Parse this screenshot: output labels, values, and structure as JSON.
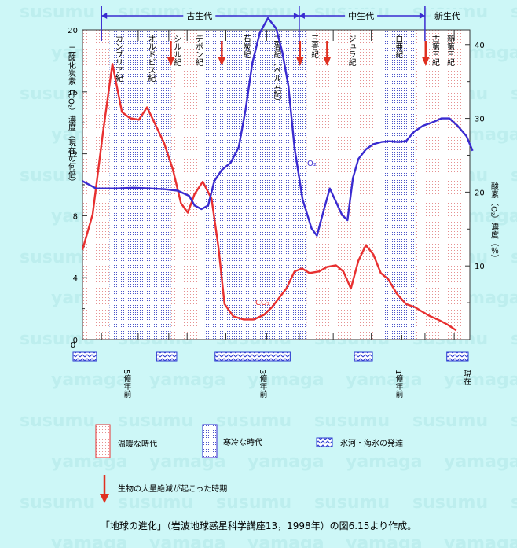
{
  "chart_data": {
    "type": "line",
    "eras": [
      {
        "label": "古生代"
      },
      {
        "label": "中生代"
      },
      {
        "label": "新生代"
      }
    ],
    "periods": [
      {
        "label": "カンブリア紀"
      },
      {
        "label": "オルドビス紀"
      },
      {
        "label": "シルル紀"
      },
      {
        "label": "デボン紀"
      },
      {
        "label": "石炭紀"
      },
      {
        "label": "二畳紀（ペルム紀）"
      },
      {
        "label": "三畳紀"
      },
      {
        "label": "ジュラ紀"
      },
      {
        "label": "白亜紀"
      },
      {
        "label": "古第三紀"
      },
      {
        "label": "新第三紀"
      }
    ],
    "x_axis": {
      "range_million_years_ago": [
        570,
        0
      ],
      "ticks": [
        {
          "value": 500,
          "label": "5億年前"
        },
        {
          "value": 300,
          "label": "3億年前"
        },
        {
          "value": 100,
          "label": "1億年前"
        },
        {
          "value": 0,
          "label": "現在"
        }
      ]
    },
    "y_left": {
      "label": "二酸化炭素（CO₂）濃度（現在の何倍）",
      "range": [
        0,
        20
      ],
      "ticks": [
        "0",
        "4",
        "8",
        "12",
        "16",
        "20"
      ]
    },
    "y_right": {
      "label": "酸素（O₂）濃度（％）",
      "range": [
        0,
        42
      ],
      "ticks": [
        "10",
        "20",
        "30",
        "40"
      ]
    },
    "series": [
      {
        "name": "CO₂",
        "axis": "left",
        "color": "#e83030",
        "points": [
          [
            570,
            5.8
          ],
          [
            555,
            8.1
          ],
          [
            540,
            13.3
          ],
          [
            526,
            17.8
          ],
          [
            512,
            14.7
          ],
          [
            500,
            14.3
          ],
          [
            487,
            14.2
          ],
          [
            475,
            15.0
          ],
          [
            464,
            14.0
          ],
          [
            450,
            12.7
          ],
          [
            437,
            11.0
          ],
          [
            425,
            8.8
          ],
          [
            415,
            8.2
          ],
          [
            405,
            9.4
          ],
          [
            393,
            10.2
          ],
          [
            380,
            9.1
          ],
          [
            370,
            6.0
          ],
          [
            361,
            2.3
          ],
          [
            348,
            1.5
          ],
          [
            333,
            1.3
          ],
          [
            318,
            1.3
          ],
          [
            303,
            1.6
          ],
          [
            291,
            2.1
          ],
          [
            270,
            3.3
          ],
          [
            258,
            4.4
          ],
          [
            247,
            4.6
          ],
          [
            236,
            4.3
          ],
          [
            222,
            4.4
          ],
          [
            210,
            4.7
          ],
          [
            197,
            4.8
          ],
          [
            186,
            4.4
          ],
          [
            175,
            3.3
          ],
          [
            164,
            5.1
          ],
          [
            153,
            6.1
          ],
          [
            142,
            5.5
          ],
          [
            131,
            4.3
          ],
          [
            120,
            3.9
          ],
          [
            108,
            3.0
          ],
          [
            94,
            2.3
          ],
          [
            81,
            2.1
          ],
          [
            70,
            1.8
          ],
          [
            58,
            1.5
          ],
          [
            47,
            1.3
          ],
          [
            34,
            1.0
          ],
          [
            20,
            0.6
          ]
        ]
      },
      {
        "name": "O₂",
        "axis": "right",
        "color": "#3a2bd0",
        "points": [
          [
            570,
            21.5
          ],
          [
            550,
            20.5
          ],
          [
            520,
            20.5
          ],
          [
            495,
            20.6
          ],
          [
            470,
            20.5
          ],
          [
            450,
            20.4
          ],
          [
            430,
            20.2
          ],
          [
            413,
            19.5
          ],
          [
            405,
            18.2
          ],
          [
            395,
            17.7
          ],
          [
            385,
            18.2
          ],
          [
            376,
            21.5
          ],
          [
            365,
            23.0
          ],
          [
            352,
            24.0
          ],
          [
            340,
            26.1
          ],
          [
            330,
            31.2
          ],
          [
            320,
            37.5
          ],
          [
            309,
            41.6
          ],
          [
            297,
            43.6
          ],
          [
            285,
            42.2
          ],
          [
            276,
            39.0
          ],
          [
            267,
            34.4
          ],
          [
            258,
            26.0
          ],
          [
            246,
            19.0
          ],
          [
            233,
            15.1
          ],
          [
            225,
            14.1
          ],
          [
            215,
            17.5
          ],
          [
            206,
            20.5
          ],
          [
            197,
            18.7
          ],
          [
            188,
            16.9
          ],
          [
            180,
            16.2
          ],
          [
            172,
            21.9
          ],
          [
            164,
            24.5
          ],
          [
            153,
            25.8
          ],
          [
            142,
            26.5
          ],
          [
            130,
            26.8
          ],
          [
            118,
            26.9
          ],
          [
            106,
            26.8
          ],
          [
            94,
            26.9
          ],
          [
            82,
            28.2
          ],
          [
            69,
            29.0
          ],
          [
            54,
            29.5
          ],
          [
            42,
            30.0
          ],
          [
            30,
            30.0
          ],
          [
            18,
            29.0
          ],
          [
            5,
            27.6
          ],
          [
            -4,
            25.6
          ]
        ]
      }
    ],
    "series_labels": [
      {
        "text": "O₂"
      },
      {
        "text": "CO₂"
      }
    ],
    "warm_periods_million_years_ago": [
      [
        570,
        530
      ],
      [
        440,
        390
      ],
      [
        240,
        130
      ],
      [
        80,
        0
      ]
    ],
    "cold_periods_million_years_ago": [
      [
        530,
        440
      ],
      [
        390,
        240
      ],
      [
        130,
        80
      ]
    ],
    "glaciation_million_years_ago": [
      [
        570,
        547
      ],
      [
        447,
        429
      ],
      [
        361,
        262
      ],
      [
        156,
        141
      ],
      [
        20,
        0
      ]
    ],
    "mass_extinctions_million_years_ago": [
      440,
      365,
      250,
      210,
      65
    ],
    "legend": [
      {
        "key": "warm",
        "label": "温暖な時代"
      },
      {
        "key": "cold",
        "label": "寒冷な時代"
      },
      {
        "key": "glacier",
        "label": "氷河・海氷の発達"
      },
      {
        "key": "extinction",
        "label": "生物の大量絶滅が起こった時期"
      }
    ],
    "watermark": [
      "susumu",
      "yamaga"
    ]
  },
  "caption": "「地球の進化」（岩波地球惑星科学講座13，1998年）の図6.15より作成。",
  "colors": {
    "background": "#cdf7f7",
    "co2": "#e83030",
    "o2": "#3a2bd0",
    "extinction": "#e03020",
    "era_arrow": "#3a2bd0"
  }
}
